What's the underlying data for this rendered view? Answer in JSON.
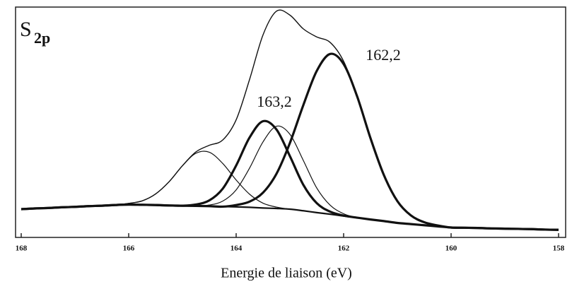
{
  "chart_data": {
    "type": "line",
    "title": "S",
    "title_subscript": "2p",
    "x_label": "Energie de liaison (eV)",
    "annotations": [
      "163,2",
      "162,2"
    ],
    "xlim": [
      168,
      158
    ],
    "xticks": [
      168,
      166,
      164,
      162,
      160,
      158
    ],
    "ylim": [
      0,
      100
    ],
    "x": [
      168,
      167.75,
      167.5,
      167.25,
      167,
      166.75,
      166.5,
      166.25,
      166,
      165.75,
      165.5,
      165.25,
      165,
      164.75,
      164.5,
      164.25,
      164,
      163.75,
      163.5,
      163.25,
      163,
      162.75,
      162.5,
      162.25,
      162,
      161.75,
      161.5,
      161.25,
      161,
      160.75,
      160.5,
      160.25,
      160,
      159.75,
      159.5,
      159.25,
      159,
      158.75,
      158.5,
      158.25,
      158
    ],
    "series": [
      {
        "color": "#111111",
        "values": [
          12,
          12.3,
          12.5,
          12.8,
          13,
          13.3,
          13.5,
          13.8,
          14,
          13.9,
          13.8,
          13.6,
          13.5,
          13.4,
          13.3,
          13.1,
          13,
          12.8,
          12.5,
          12.3,
          12,
          11.3,
          10.5,
          9.8,
          9,
          8.3,
          7.5,
          6.8,
          6,
          5.5,
          5,
          4.5,
          4,
          3.9,
          3.8,
          3.6,
          3.5,
          3.4,
          3.3,
          3.1,
          3
        ]
      },
      {
        "color": "#111111",
        "values": [
          12,
          12.3,
          12.5,
          12.8,
          13,
          13.3,
          13.5,
          13.8,
          14.5,
          15.6,
          18.6,
          23.9,
          30.9,
          36.9,
          39.8,
          42.1,
          50.9,
          68.5,
          87.9,
          98.2,
          96.5,
          90.5,
          87.0,
          84.6,
          76.4,
          61.2,
          42.9,
          26.8,
          15.5,
          9.3,
          6.3,
          4.9,
          4,
          3.9,
          3.8,
          3.6,
          3.5,
          3.4,
          3.3,
          3.1,
          3
        ]
      },
      {
        "color": "#111111",
        "values": [
          12,
          12.3,
          12.5,
          12.8,
          13,
          13.3,
          13.5,
          13.8,
          14,
          13.9,
          13.8,
          13.6,
          13.5,
          13.4,
          13.3,
          13.1,
          13.8,
          15.3,
          19.2,
          27.4,
          40.8,
          57.3,
          72.2,
          79.6,
          75.2,
          61.2,
          42.9,
          26.8,
          15.5,
          9.3,
          6.3,
          4.9,
          4,
          3.9,
          3.8,
          3.6,
          3.5,
          3.4,
          3.3,
          3.1,
          3
        ]
      },
      {
        "color": "#111111",
        "values": [
          12,
          12.3,
          12.5,
          12.8,
          13,
          13.3,
          13.5,
          13.8,
          14,
          13.9,
          13.8,
          13.6,
          13.5,
          14.0,
          15.8,
          20.9,
          31.0,
          43.2,
          50.3,
          46.7,
          35.1,
          22.6,
          14.6,
          10.9,
          9.2,
          8.3,
          7.5,
          6.8,
          6,
          5.5,
          5,
          4.5,
          4,
          3.9,
          3.8,
          3.6,
          3.5,
          3.4,
          3.3,
          3.1,
          3
        ]
      },
      {
        "color": "#111111",
        "values": [
          12,
          12.3,
          12.5,
          12.8,
          13,
          13.3,
          13.5,
          13.8,
          14,
          13.9,
          13.8,
          13.6,
          13.5,
          13.4,
          13.8,
          15.5,
          20.4,
          29.9,
          41.3,
          48.1,
          44.6,
          33.2,
          21.2,
          13.7,
          10.0,
          8.3,
          7.5,
          6.8,
          6,
          5.5,
          5,
          4.5,
          4,
          3.9,
          3.8,
          3.6,
          3.5,
          3.4,
          3.3,
          3.1,
          3
        ]
      },
      {
        "color": "#111111",
        "values": [
          12,
          12.3,
          12.5,
          12.8,
          13,
          13.3,
          13.5,
          13.8,
          14.5,
          15.6,
          18.6,
          23.9,
          30.9,
          36.3,
          36.8,
          31.9,
          24.7,
          18.5,
          14.6,
          12.9,
          12,
          11.3,
          10.5,
          9.8,
          9,
          8.3,
          7.5,
          6.8,
          6,
          5.5,
          5,
          4.5,
          4,
          3.9,
          3.8,
          3.6,
          3.5,
          3.4,
          3.3,
          3.1,
          3
        ]
      }
    ]
  }
}
